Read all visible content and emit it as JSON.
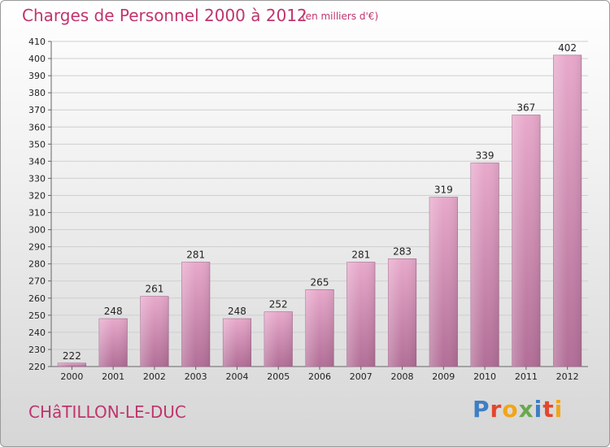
{
  "chart_data": {
    "type": "bar",
    "title": "Charges de Personnel 2000 à 2012",
    "subtitle": "(en milliers d'€)",
    "categories": [
      "2000",
      "2001",
      "2002",
      "2003",
      "2004",
      "2005",
      "2006",
      "2007",
      "2008",
      "2009",
      "2010",
      "2011",
      "2012"
    ],
    "values": [
      222,
      248,
      261,
      281,
      248,
      252,
      265,
      281,
      283,
      319,
      339,
      367,
      402
    ],
    "ylim": [
      220,
      410
    ],
    "yticks": [
      220,
      230,
      240,
      250,
      260,
      270,
      280,
      290,
      300,
      310,
      320,
      330,
      340,
      350,
      360,
      370,
      380,
      390,
      400,
      410
    ],
    "grid": true,
    "bar_color_top": "#e8a9cb",
    "bar_color_bottom": "#b26e97"
  },
  "footer": {
    "location": "CHâTILLON-LE-DUC",
    "brand_letters": [
      {
        "ch": "P",
        "color": "#3d7fc4"
      },
      {
        "ch": "r",
        "color": "#e3462f"
      },
      {
        "ch": "o",
        "color": "#f2a516"
      },
      {
        "ch": "x",
        "color": "#6aa84f"
      },
      {
        "ch": "i",
        "color": "#3d7fc4"
      },
      {
        "ch": "t",
        "color": "#e3462f"
      },
      {
        "ch": "i",
        "color": "#f2a516"
      }
    ]
  }
}
